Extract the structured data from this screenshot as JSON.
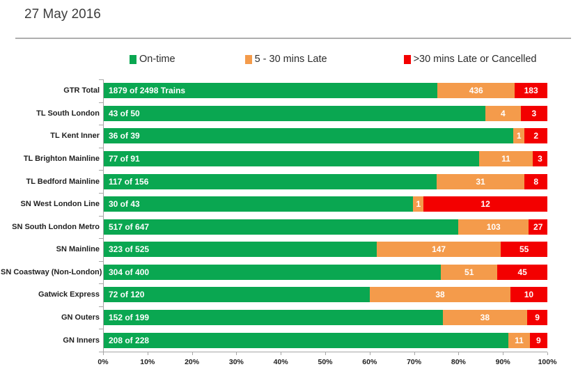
{
  "title": "27 May 2016",
  "legend": {
    "items": [
      {
        "label": "On-time",
        "color_key": "green"
      },
      {
        "label": "5 - 30 mins Late",
        "color_key": "orange"
      },
      {
        "label": ">30 mins Late or Cancelled",
        "color_key": "red"
      }
    ]
  },
  "colors": {
    "green": "#0aa751",
    "orange": "#f49b4b",
    "red": "#f30000",
    "axis": "#a6a6a6",
    "bar_label_text": "#ffffff"
  },
  "chart_data": {
    "type": "bar",
    "orientation": "horizontal",
    "stacked": true,
    "units": "percent_of_total_trains",
    "title": "27 May 2016",
    "xlabel": "",
    "ylabel": "",
    "xlim": [
      0,
      100
    ],
    "grid": false,
    "legend_position": "top",
    "categories": [
      "GTR Total",
      "TL South London",
      "TL Kent Inner",
      "TL Brighton Mainline",
      "TL Bedford Mainline",
      "SN West London Line",
      "SN South London Metro",
      "SN Mainline",
      "SN Coastway (Non-London)",
      "Gatwick Express",
      "GN Outers",
      "GN Inners"
    ],
    "totals": [
      2498,
      50,
      39,
      91,
      156,
      43,
      647,
      525,
      400,
      120,
      199,
      228
    ],
    "series": [
      {
        "name": "On-time",
        "values": [
          1879,
          43,
          36,
          77,
          117,
          30,
          517,
          323,
          304,
          72,
          152,
          208
        ]
      },
      {
        "name": "5 - 30 mins Late",
        "values": [
          436,
          4,
          1,
          11,
          31,
          1,
          103,
          147,
          51,
          38,
          38,
          11
        ]
      },
      {
        "name": ">30 mins Late or Cancelled",
        "values": [
          183,
          3,
          2,
          3,
          8,
          12,
          27,
          55,
          45,
          10,
          9,
          9
        ]
      }
    ],
    "on_time_bar_labels": [
      "1879 of 2498 Trains",
      "43 of 50",
      "36 of 39",
      "77 of 91",
      "117 of 156",
      "30 of 43",
      "517 of 647",
      "323 of 525",
      "304 of 400",
      "72 of 120",
      "152 of 199",
      "208 of 228"
    ],
    "x_axis_ticks": [
      "0%",
      "10%",
      "20%",
      "30%",
      "40%",
      "50%",
      "60%",
      "70%",
      "80%",
      "90%",
      "100%"
    ]
  }
}
